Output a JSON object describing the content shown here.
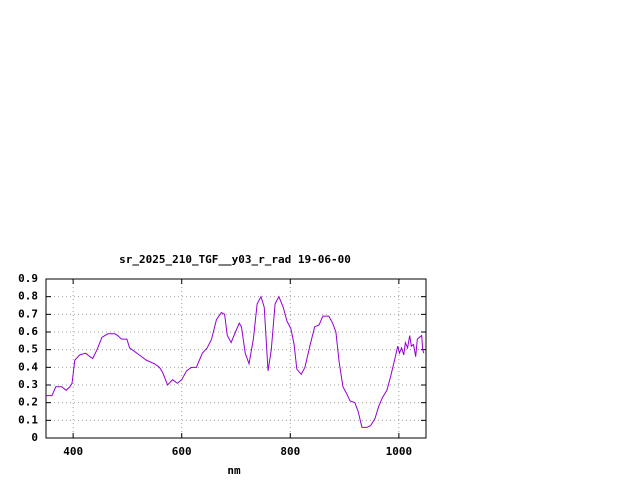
{
  "chart_data": {
    "type": "line",
    "title": "sr_2025_210_TGF__y03_r_rad 19-06-00",
    "x_label": "nm",
    "xlim": [
      350,
      1050
    ],
    "xticks": [
      400,
      600,
      800,
      1000
    ],
    "ylim": [
      0,
      0.9
    ],
    "yticks": [
      0,
      0.1,
      0.2,
      0.3,
      0.4,
      0.5,
      0.6,
      0.7,
      0.8,
      0.9
    ],
    "grid": true,
    "x": [
      350,
      361,
      368,
      379,
      387,
      394,
      398,
      403,
      412,
      423,
      431,
      436,
      444,
      453,
      464,
      477,
      482,
      489,
      499,
      504,
      513,
      522,
      535,
      550,
      559,
      565,
      574,
      583,
      592,
      600,
      609,
      618,
      627,
      638,
      647,
      655,
      664,
      673,
      679,
      684,
      691,
      699,
      706,
      710,
      717,
      724,
      732,
      739,
      746,
      752,
      759,
      765,
      772,
      779,
      787,
      794,
      801,
      807,
      812,
      820,
      827,
      836,
      845,
      853,
      860,
      871,
      878,
      884,
      890,
      897,
      904,
      910,
      919,
      925,
      932,
      941,
      948,
      956,
      963,
      970,
      978,
      985,
      992,
      998,
      1001,
      1005,
      1009,
      1012,
      1016,
      1020,
      1023,
      1027,
      1031,
      1034,
      1038,
      1042,
      1044,
      1046
    ],
    "series": [
      {
        "color": "#9400d3",
        "values": [
          0.24,
          0.24,
          0.29,
          0.29,
          0.27,
          0.29,
          0.31,
          0.44,
          0.47,
          0.48,
          0.46,
          0.45,
          0.5,
          0.57,
          0.59,
          0.59,
          0.58,
          0.56,
          0.56,
          0.51,
          0.49,
          0.47,
          0.44,
          0.42,
          0.4,
          0.37,
          0.3,
          0.33,
          0.31,
          0.33,
          0.38,
          0.4,
          0.4,
          0.48,
          0.51,
          0.56,
          0.67,
          0.71,
          0.7,
          0.58,
          0.54,
          0.6,
          0.65,
          0.63,
          0.48,
          0.42,
          0.56,
          0.76,
          0.8,
          0.74,
          0.38,
          0.5,
          0.76,
          0.8,
          0.74,
          0.66,
          0.62,
          0.53,
          0.39,
          0.36,
          0.4,
          0.52,
          0.63,
          0.64,
          0.69,
          0.69,
          0.65,
          0.6,
          0.43,
          0.29,
          0.25,
          0.21,
          0.2,
          0.15,
          0.06,
          0.06,
          0.07,
          0.11,
          0.18,
          0.23,
          0.27,
          0.35,
          0.44,
          0.52,
          0.48,
          0.51,
          0.47,
          0.54,
          0.51,
          0.58,
          0.52,
          0.53,
          0.46,
          0.56,
          0.57,
          0.58,
          0.5,
          0.48
        ]
      }
    ]
  }
}
